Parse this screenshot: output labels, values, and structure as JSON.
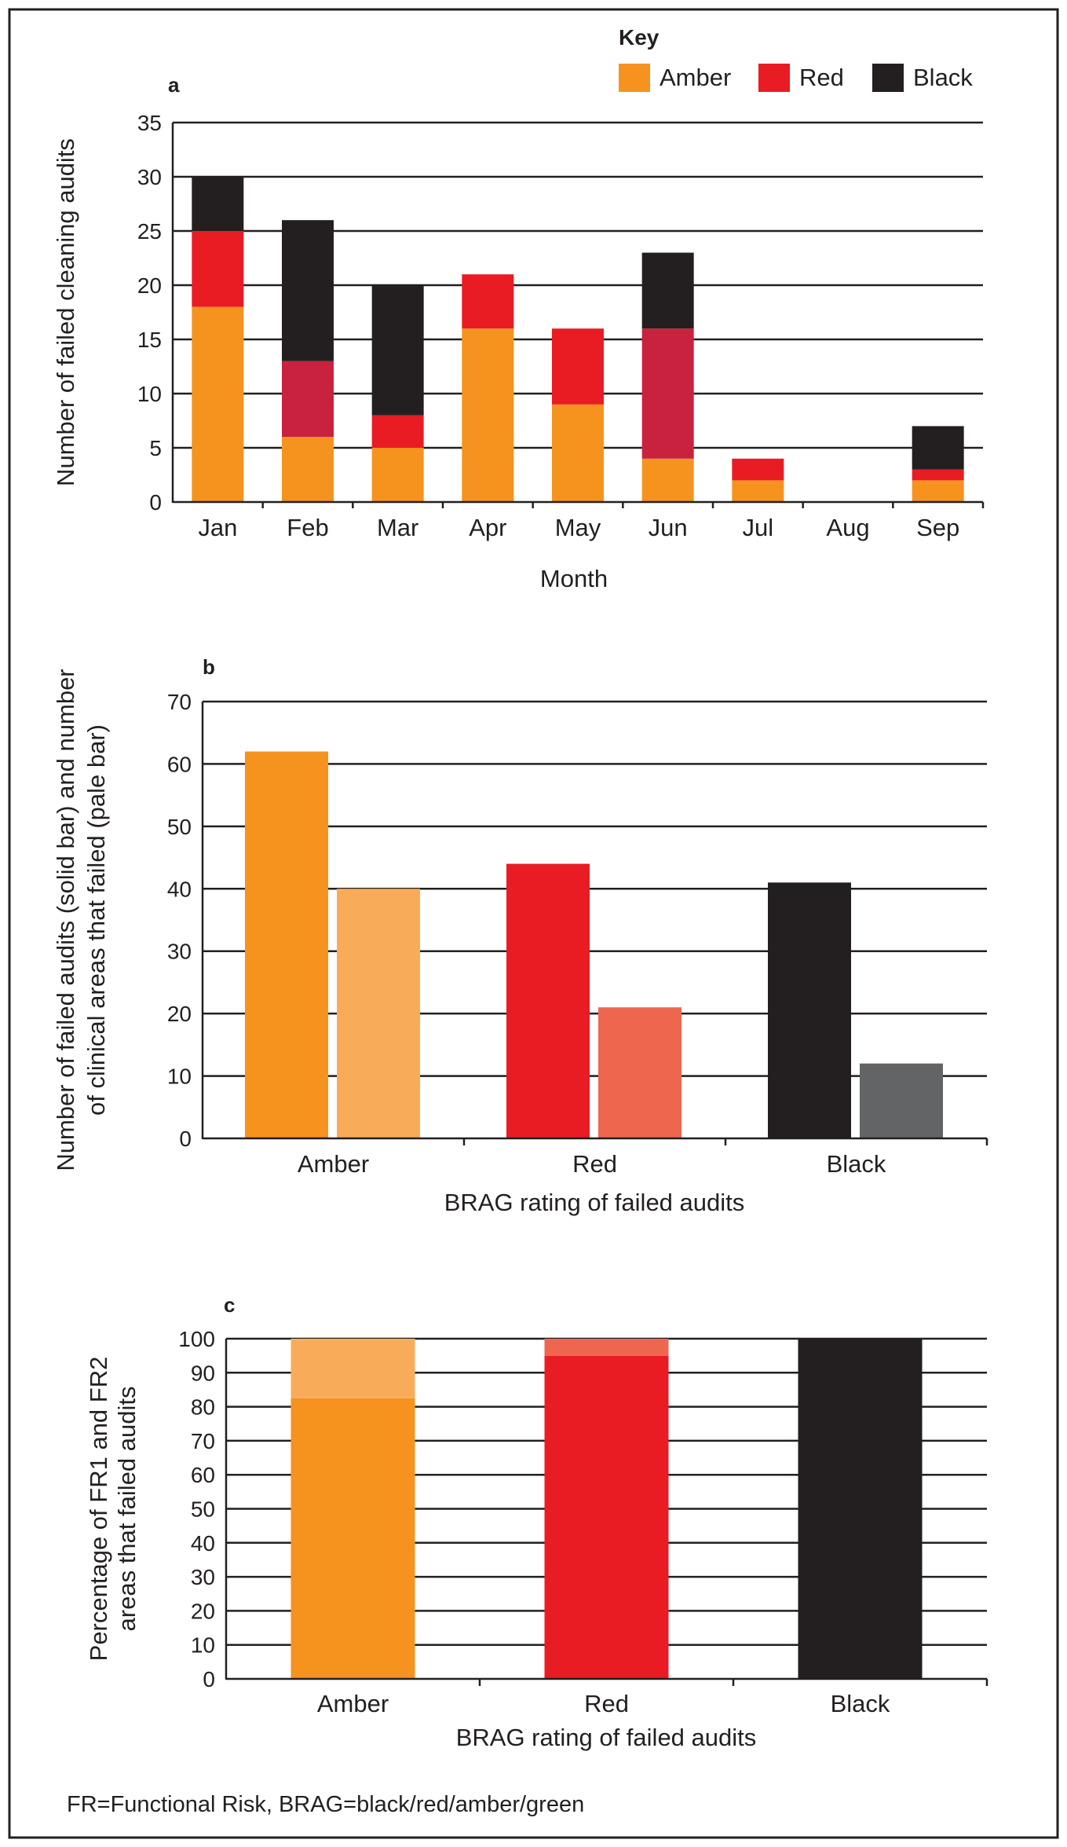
{
  "legend": {
    "title": "Key",
    "items": [
      {
        "label": "Amber",
        "color": "#f5931e"
      },
      {
        "label": "Red",
        "color": "#e91c24"
      },
      {
        "label": "Black",
        "color": "#231f20"
      }
    ]
  },
  "footnote": "FR=Functional Risk, BRAG=black/red/amber/green",
  "chart_data": [
    {
      "panel": "a",
      "type": "bar",
      "stacked": true,
      "categories": [
        "Jan",
        "Feb",
        "Mar",
        "Apr",
        "May",
        "Jun",
        "Jul",
        "Aug",
        "Sep"
      ],
      "series": [
        {
          "name": "Amber",
          "values": [
            18,
            6,
            5,
            16,
            9,
            4,
            2,
            0,
            2
          ],
          "colors": [
            "#f5931e",
            "#f5931e",
            "#f5931e",
            "#f5931e",
            "#f5931e",
            "#f5931e",
            "#f5931e",
            "#f5931e",
            "#f5931e"
          ]
        },
        {
          "name": "Red",
          "values": [
            7,
            7,
            3,
            5,
            7,
            12,
            2,
            0,
            1
          ],
          "colors": [
            "#e91c24",
            "#c8223e",
            "#e91c24",
            "#e91c24",
            "#e91c24",
            "#c8223e",
            "#e91c24",
            "#e91c24",
            "#e91c24"
          ]
        },
        {
          "name": "Black",
          "values": [
            5,
            13,
            12,
            0,
            0,
            7,
            0,
            0,
            4
          ],
          "colors": [
            "#231f20",
            "#231f20",
            "#231f20",
            "#231f20",
            "#231f20",
            "#231f20",
            "#231f20",
            "#231f20",
            "#231f20"
          ]
        }
      ],
      "xlabel": "Month",
      "ylabel": "Number of failed cleaning audits",
      "ylim": [
        0,
        35
      ],
      "yticks": [
        0,
        5,
        10,
        15,
        20,
        25,
        30,
        35
      ],
      "grid": true
    },
    {
      "panel": "b",
      "type": "bar",
      "categories": [
        "Amber",
        "Red",
        "Black"
      ],
      "series": [
        {
          "name": "solid bar",
          "values": [
            62,
            44,
            41
          ],
          "colors": [
            "#f5931e",
            "#e91c24",
            "#231f20"
          ]
        },
        {
          "name": "pale bar",
          "values": [
            40,
            21,
            12
          ],
          "colors": [
            "#f8ac5a",
            "#ef664f",
            "#636466"
          ]
        }
      ],
      "xlabel": "BRAG rating of failed audits",
      "ylabel_lines": [
        "Number of failed audits (solid bar) and number",
        "of clinical areas that failed (pale bar)"
      ],
      "ylim": [
        0,
        70
      ],
      "yticks": [
        0,
        10,
        20,
        30,
        40,
        50,
        60,
        70
      ],
      "grid": true
    },
    {
      "panel": "c",
      "type": "bar",
      "stacked": true,
      "categories": [
        "Amber",
        "Red",
        "Black"
      ],
      "series": [
        {
          "name": "solid",
          "values": [
            82.5,
            95,
            100
          ],
          "colors": [
            "#f5931e",
            "#e91c24",
            "#231f20"
          ]
        },
        {
          "name": "pale",
          "values": [
            17.5,
            5,
            0
          ],
          "colors": [
            "#f8ac5a",
            "#ef664f",
            "#636466"
          ]
        }
      ],
      "xlabel": "BRAG rating of failed audits",
      "ylabel_lines": [
        "Percentage of FR1 and FR2",
        "areas that failed audits"
      ],
      "ylim": [
        0,
        100
      ],
      "yticks": [
        0,
        10,
        20,
        30,
        40,
        50,
        60,
        70,
        80,
        90,
        100
      ],
      "grid": true
    }
  ]
}
